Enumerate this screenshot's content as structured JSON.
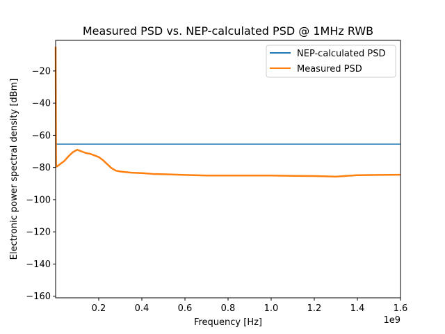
{
  "chart_data": {
    "type": "line",
    "title": "Measured PSD vs. NEP-calculated PSD @ 1MHz RWB",
    "xlabel": "Frequency [Hz]",
    "ylabel": "Electronic power spectral density [dBm]",
    "x_offset_label": "1e9",
    "xlim": [
      0,
      1.6
    ],
    "ylim": [
      -161,
      -1
    ],
    "x_unit_scale": 1000000000.0,
    "x_ticks": [
      0.2,
      0.4,
      0.6,
      0.8,
      1.0,
      1.2,
      1.4,
      1.6
    ],
    "x_tick_labels": [
      "0.2",
      "0.4",
      "0.6",
      "0.8",
      "1.0",
      "1.2",
      "1.4",
      "1.6"
    ],
    "y_ticks": [
      -20,
      -40,
      -60,
      -80,
      -100,
      -120,
      -140,
      -160
    ],
    "y_tick_labels": [
      "−20",
      "−40",
      "−60",
      "−80",
      "−100",
      "−120",
      "−140",
      "−160"
    ],
    "grid": false,
    "legend_position": "top-right",
    "series": [
      {
        "name": "NEP-calculated PSD",
        "color": "#1f77b4",
        "x": [
          0,
          1.6
        ],
        "y": [
          -65.5,
          -65.5
        ]
      },
      {
        "name": "Measured PSD",
        "color": "#ff7f0e",
        "x": [
          0.0,
          0.001,
          0.002,
          0.004,
          0.01,
          0.02,
          0.04,
          0.06,
          0.08,
          0.1,
          0.12,
          0.14,
          0.16,
          0.18,
          0.2,
          0.22,
          0.24,
          0.26,
          0.28,
          0.3,
          0.35,
          0.4,
          0.45,
          0.5,
          0.55,
          0.6,
          0.7,
          0.8,
          0.9,
          1.0,
          1.1,
          1.2,
          1.25,
          1.3,
          1.35,
          1.4,
          1.5,
          1.6
        ],
        "y": [
          -5,
          -45,
          -78,
          -79.5,
          -79,
          -78,
          -76,
          -73,
          -70.5,
          -69,
          -70,
          -71,
          -71.5,
          -72.5,
          -73.5,
          -75.5,
          -78,
          -80.5,
          -82,
          -82.5,
          -83.2,
          -83.5,
          -84,
          -84.2,
          -84.4,
          -84.6,
          -85,
          -85,
          -85,
          -85,
          -85.2,
          -85.3,
          -85.5,
          -85.7,
          -85.2,
          -84.8,
          -84.6,
          -84.5
        ]
      }
    ]
  }
}
